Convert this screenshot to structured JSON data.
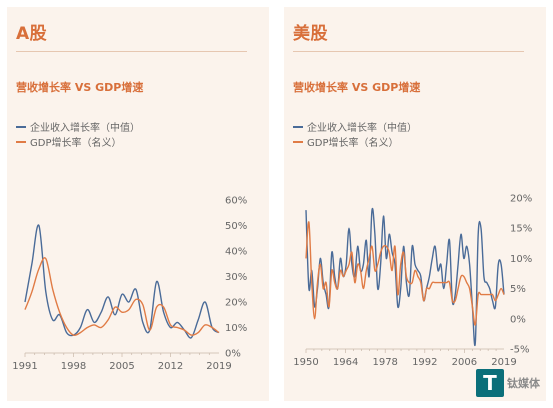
{
  "colors": {
    "panel_bg": "#fbf3ec",
    "accent": "#d86f3a",
    "series_blue": "#4a6b98",
    "series_orange": "#e07b45",
    "rule": "#e6c7b1"
  },
  "panels": [
    {
      "title": "A股",
      "subtitle": "营收增长率 VS GDP增速",
      "legend": [
        "企业收入增长率（中值）",
        "GDP增长率（名义）"
      ]
    },
    {
      "title": "美股",
      "subtitle": "营收增长率 VS GDP增速",
      "legend": [
        "企业收入增长率（中值）",
        "GDP增长率（名义）"
      ]
    }
  ],
  "chart_data": [
    {
      "type": "line",
      "x_ticks": [
        "1991",
        "1998",
        "2005",
        "2012",
        "2019"
      ],
      "y_ticks": [
        "60%",
        "50%",
        "40%",
        "30%",
        "20%",
        "10%",
        "0%"
      ],
      "ylim": [
        0,
        60
      ],
      "xlim": [
        1991,
        2019
      ],
      "grid": false,
      "series": [
        {
          "name": "企业收入增长率（中值）",
          "color": "#4a6b98",
          "x": [
            1991,
            1992,
            1993,
            1994,
            1995,
            1996,
            1997,
            1998,
            1999,
            2000,
            2001,
            2002,
            2003,
            2004,
            2005,
            2006,
            2007,
            2008,
            2009,
            2010,
            2011,
            2012,
            2013,
            2014,
            2015,
            2016,
            2017,
            2018,
            2019
          ],
          "values": [
            20,
            35,
            50,
            24,
            13,
            15,
            8,
            7,
            10,
            17,
            12,
            16,
            22,
            15,
            23,
            20,
            25,
            12,
            9,
            28,
            16,
            10,
            12,
            9,
            6,
            13,
            20,
            10,
            8
          ]
        },
        {
          "name": "GDP增长率（名义）",
          "color": "#e07b45",
          "x": [
            1991,
            1992,
            1993,
            1994,
            1995,
            1996,
            1997,
            1998,
            1999,
            2000,
            2001,
            2002,
            2003,
            2004,
            2005,
            2006,
            2007,
            2008,
            2009,
            2010,
            2011,
            2012,
            2013,
            2014,
            2015,
            2016,
            2017,
            2018,
            2019
          ],
          "values": [
            17,
            24,
            33,
            37,
            25,
            16,
            10,
            7,
            8,
            10,
            11,
            10,
            13,
            18,
            16,
            17,
            21,
            19,
            9,
            18,
            18,
            11,
            10,
            9,
            7,
            8,
            11,
            10,
            8
          ]
        }
      ]
    },
    {
      "type": "line",
      "x_ticks": [
        "1950",
        "1964",
        "1978",
        "1992",
        "2006",
        "2019"
      ],
      "y_ticks": [
        "20%",
        "15%",
        "10%",
        "5%",
        "0%",
        "-5%"
      ],
      "ylim": [
        -5,
        20
      ],
      "xlim": [
        1950,
        2019
      ],
      "grid": false,
      "series": [
        {
          "name": "企业收入增长率（中值）",
          "color": "#4a6b98",
          "x": [
            1950,
            1951,
            1952,
            1953,
            1954,
            1955,
            1956,
            1957,
            1958,
            1959,
            1960,
            1961,
            1962,
            1963,
            1964,
            1965,
            1966,
            1967,
            1968,
            1969,
            1970,
            1971,
            1972,
            1973,
            1974,
            1975,
            1976,
            1977,
            1978,
            1979,
            1980,
            1981,
            1982,
            1983,
            1984,
            1985,
            1986,
            1987,
            1988,
            1989,
            1990,
            1991,
            1992,
            1993,
            1994,
            1995,
            1996,
            1997,
            1998,
            1999,
            2000,
            2001,
            2002,
            2003,
            2004,
            2005,
            2006,
            2007,
            2008,
            2009,
            2010,
            2011,
            2012,
            2013,
            2014,
            2015,
            2016,
            2017,
            2018,
            2019
          ],
          "values": [
            18,
            5,
            8,
            2,
            5,
            10,
            6,
            4,
            2,
            11,
            7,
            5,
            10,
            7,
            9,
            15,
            9,
            7,
            12,
            8,
            9,
            13,
            7,
            18,
            14,
            5,
            9,
            17,
            10,
            14,
            11,
            9,
            2,
            5,
            12,
            6,
            4,
            12,
            9,
            8,
            7,
            3,
            5,
            7,
            10,
            12,
            8,
            9,
            5,
            9,
            13,
            3,
            4,
            9,
            14,
            10,
            12,
            9,
            2,
            -4,
            14,
            15,
            7,
            6,
            5,
            3,
            2,
            9,
            9,
            4
          ]
        },
        {
          "name": "GDP增长率（名义）",
          "color": "#e07b45",
          "x": [
            1950,
            1951,
            1952,
            1953,
            1954,
            1955,
            1956,
            1957,
            1958,
            1959,
            1960,
            1961,
            1962,
            1963,
            1964,
            1965,
            1966,
            1967,
            1968,
            1969,
            1970,
            1971,
            1972,
            1973,
            1974,
            1975,
            1976,
            1977,
            1978,
            1979,
            1980,
            1981,
            1982,
            1983,
            1984,
            1985,
            1986,
            1987,
            1988,
            1989,
            1990,
            1991,
            1992,
            1993,
            1994,
            1995,
            1996,
            1997,
            1998,
            1999,
            2000,
            2001,
            2002,
            2003,
            2004,
            2005,
            2006,
            2007,
            2008,
            2009,
            2010,
            2011,
            2012,
            2013,
            2014,
            2015,
            2016,
            2017,
            2018,
            2019
          ],
          "values": [
            10,
            16,
            6,
            0,
            6,
            9,
            5,
            6,
            2,
            8,
            6,
            5,
            8,
            7,
            8,
            9,
            11,
            6,
            9,
            8,
            5,
            8,
            10,
            12,
            8,
            9,
            11,
            12,
            12,
            11,
            8,
            12,
            4,
            9,
            11,
            7,
            6,
            6,
            8,
            7,
            6,
            3,
            5,
            5,
            6,
            6,
            6,
            6,
            6,
            6,
            6,
            3,
            3,
            5,
            7,
            7,
            6,
            5,
            2,
            -1,
            4,
            4,
            4,
            4,
            4,
            4,
            3,
            4,
            5,
            4
          ]
        }
      ]
    }
  ],
  "watermark": {
    "letter": "T",
    "text": "钛媒体"
  }
}
